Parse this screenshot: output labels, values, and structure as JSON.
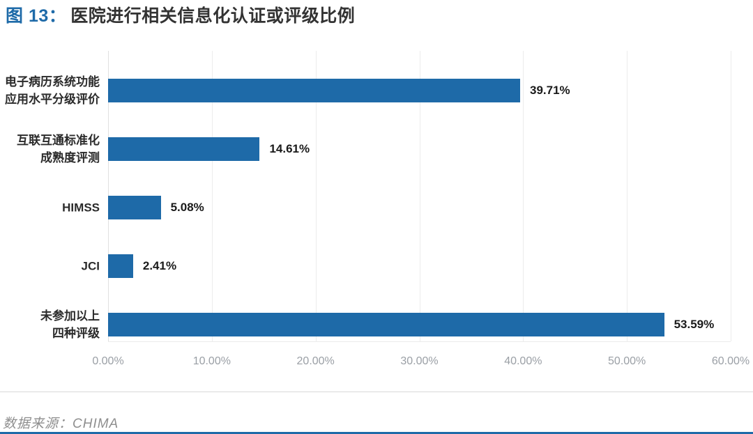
{
  "header": {
    "figure_label": "图 13：",
    "title": "医院进行相关信息化认证或评级比例"
  },
  "chart_data": {
    "type": "bar",
    "orientation": "horizontal",
    "title": "医院进行相关信息化认证或评级比例",
    "categories": [
      "电子病历系统功能\n应用水平分级评价",
      "互联互通标准化\n成熟度评测",
      "HIMSS",
      "JCI",
      "未参加以上\n四种评级"
    ],
    "values": [
      39.71,
      14.61,
      5.08,
      2.41,
      53.59
    ],
    "value_labels": [
      "39.71%",
      "14.61%",
      "5.08%",
      "2.41%",
      "53.59%"
    ],
    "x_ticks": [
      "0.00%",
      "10.00%",
      "20.00%",
      "30.00%",
      "40.00%",
      "50.00%",
      "60.00%"
    ],
    "x_tick_values": [
      0,
      10,
      20,
      30,
      40,
      50,
      60
    ],
    "xlim": [
      0,
      60
    ],
    "xlabel": "",
    "ylabel": "",
    "grid": true,
    "legend": false,
    "bar_color": "#1e6aa8"
  },
  "footer": {
    "source": "数据来源：CHIMA"
  },
  "colors": {
    "accent_blue": "#1e6aa8",
    "title_text": "#333333",
    "label_text": "#2b2b2b",
    "tick_text": "#9a9fa5",
    "grid_line": "#ececec",
    "separator_line": "#d9d9d9",
    "source_text": "#8e8e8e"
  }
}
